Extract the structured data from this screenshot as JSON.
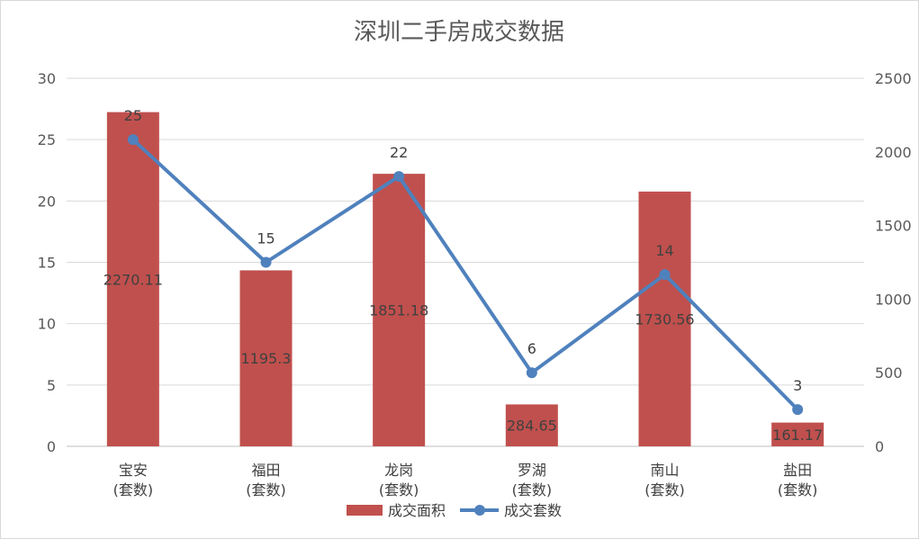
{
  "chart_data": {
    "type": "bar",
    "title": "深圳二手房成交数据",
    "categories": [
      "宝安",
      "福田",
      "龙岗",
      "罗湖",
      "南山",
      "盐田"
    ],
    "category_sub": "(套数)",
    "series": [
      {
        "name": "成交面积",
        "type": "bar",
        "axis": "right",
        "color": "#c0504d",
        "values": [
          2270.11,
          1195.3,
          1851.18,
          284.65,
          1730.56,
          161.17
        ],
        "labels": [
          "2270.11",
          "1195.3",
          "1851.18",
          "284.65",
          "1730.56",
          "161.17"
        ]
      },
      {
        "name": "成交套数",
        "type": "line",
        "axis": "left",
        "color": "#4f81bd",
        "values": [
          25,
          15,
          22,
          6,
          14,
          3
        ],
        "labels": [
          "25",
          "15",
          "22",
          "6",
          "14",
          "3"
        ]
      }
    ],
    "left_axis": {
      "ylim": [
        0,
        30
      ],
      "ticks": [
        "0",
        "5",
        "10",
        "15",
        "20",
        "25",
        "30"
      ]
    },
    "right_axis": {
      "ylim": [
        0,
        2500
      ],
      "ticks": [
        "0",
        "500",
        "1000",
        "1500",
        "2000",
        "2500"
      ]
    },
    "grid": true,
    "legend": "bottom"
  }
}
